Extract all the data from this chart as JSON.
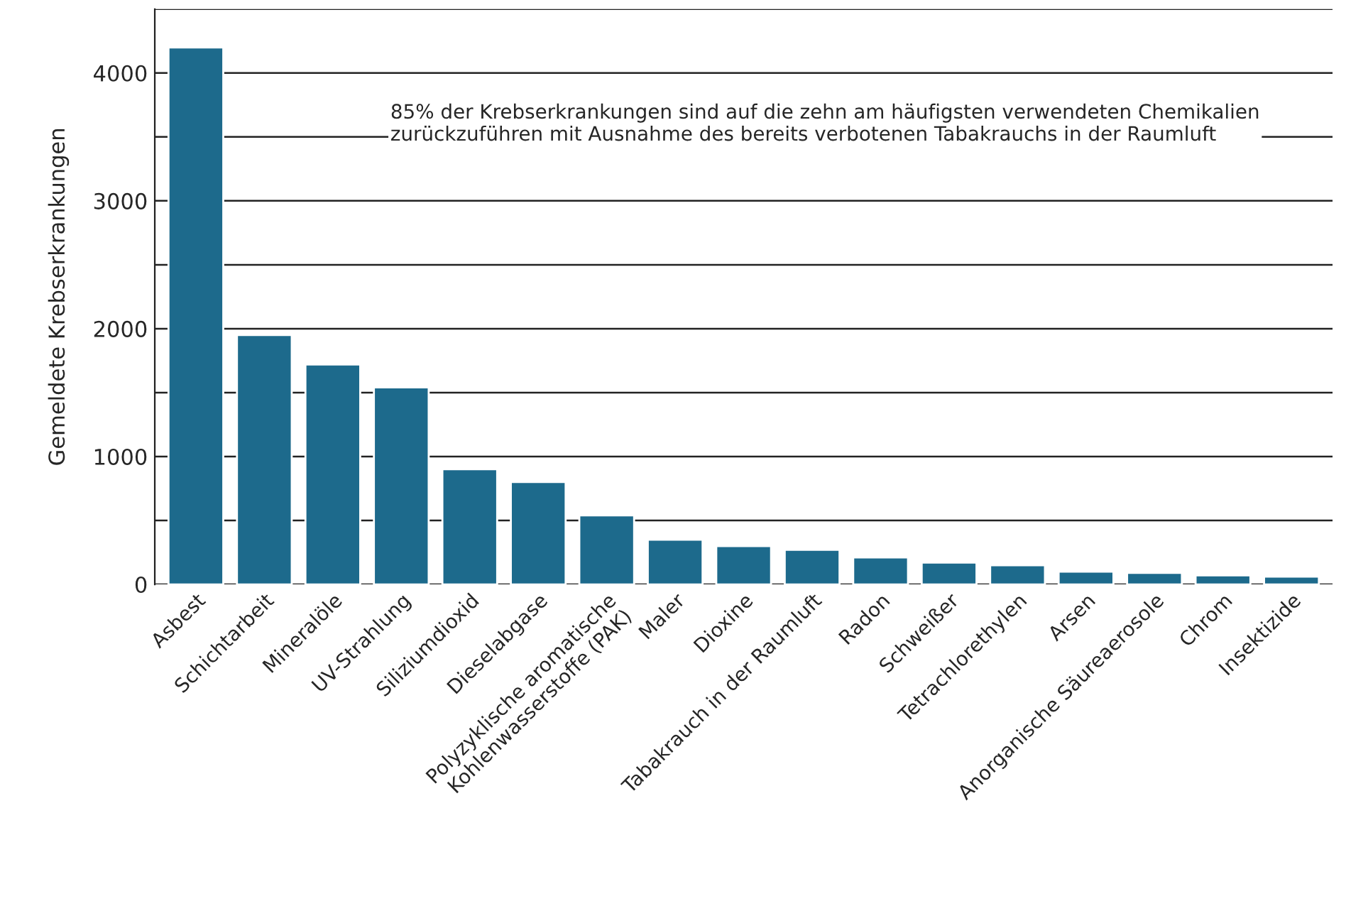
{
  "chart_data": {
    "type": "bar",
    "ylabel": "Gemeldete Krebserkrankungen",
    "categories": [
      "Asbest",
      "Schichtarbeit",
      "Mineralöle",
      "UV-Strahlung",
      "Siliziumdioxid",
      "Dieselabgase",
      "Polyzyklische aromatische\nKohlenwasserstoffe (PAK)",
      "Maler",
      "Dioxine",
      "Tabakrauch in der Raumluft",
      "Radon",
      "Schweißer",
      "Tetrachlorethylen",
      "Arsen",
      "Anorganische Säureaerosole",
      "Chrom",
      "Insektizide"
    ],
    "values": [
      4200,
      1950,
      1720,
      1540,
      900,
      800,
      540,
      350,
      300,
      270,
      210,
      170,
      150,
      100,
      90,
      70,
      60
    ],
    "color": "#1d6a8c",
    "ylim": [
      0,
      4500
    ],
    "yticks": [
      0,
      {
        "value": 500,
        "label": null
      },
      1000,
      {
        "value": 1500,
        "label": null
      },
      2000,
      {
        "value": 2500,
        "label": null
      },
      3000,
      {
        "value": 3500,
        "label": null
      },
      4000,
      {
        "value": 4500,
        "label": null
      }
    ],
    "grid": "y",
    "annotations": [
      "85% der Krebserkrankungen sind auf die zehn am häufigsten verwendeten Chemikalien\nzurückzuführen mit Ausnahme des bereits verbotenen Tabakrauchs in der Raumluft"
    ]
  }
}
